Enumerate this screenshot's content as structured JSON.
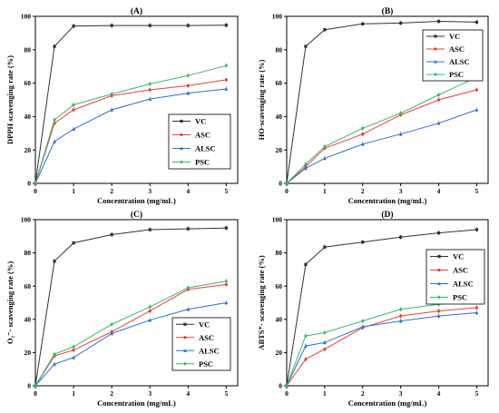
{
  "colors": {
    "VC": "#333333",
    "ASC": "#e8413a",
    "ALSC": "#2d6fd1",
    "PSC": "#3cb46a"
  },
  "chart_data": [
    {
      "type": "line",
      "title": "(A)",
      "xlabel": "Concentration (mg/mL)",
      "ylabel": "DPPH scavenging rate (%)",
      "x": [
        0,
        0.5,
        1,
        2,
        3,
        4,
        5
      ],
      "xticks": [
        "0",
        "1",
        "2",
        "3",
        "4",
        "5"
      ],
      "yticks": [
        "0",
        "20",
        "40",
        "60",
        "80",
        "100"
      ],
      "xlim": [
        0,
        5.3
      ],
      "ylim": [
        0,
        100
      ],
      "legend": "middle-right",
      "series": [
        {
          "name": "VC",
          "values": [
            0,
            82,
            94.2,
            94.5,
            94.5,
            94.5,
            94.7
          ]
        },
        {
          "name": "ASC",
          "values": [
            0,
            36,
            44,
            52.5,
            56,
            58.5,
            62
          ]
        },
        {
          "name": "ALSC",
          "values": [
            0,
            25,
            32.5,
            44,
            50.5,
            54,
            56.5
          ]
        },
        {
          "name": "PSC",
          "values": [
            0,
            38,
            47,
            53.5,
            59.5,
            64.5,
            70.5
          ]
        }
      ]
    },
    {
      "type": "line",
      "title": "(B)",
      "xlabel": "Concentration (mg/mL)",
      "ylabel": "HO·scavenging rate (%)",
      "x": [
        0,
        0.5,
        1,
        2,
        3,
        4,
        5
      ],
      "xticks": [
        "0",
        "1",
        "2",
        "3",
        "4",
        "5"
      ],
      "yticks": [
        "0",
        "20",
        "40",
        "60",
        "80",
        "100"
      ],
      "xlim": [
        0,
        5.3
      ],
      "ylim": [
        0,
        100
      ],
      "legend": "top-right",
      "series": [
        {
          "name": "VC",
          "values": [
            0,
            82,
            92,
            95.5,
            96,
            97,
            96.5
          ]
        },
        {
          "name": "ASC",
          "values": [
            0,
            10,
            21,
            29.5,
            41,
            50,
            56
          ]
        },
        {
          "name": "ALSC",
          "values": [
            0,
            9,
            15,
            23.5,
            29.5,
            36,
            44
          ]
        },
        {
          "name": "PSC",
          "values": [
            0,
            11.5,
            22,
            33,
            42,
            53,
            63.5
          ]
        }
      ]
    },
    {
      "type": "line",
      "title": "(C)",
      "xlabel": "Concentration (mg/mL)",
      "ylabel": "O₂⁻· scavenging rate (%)",
      "x": [
        0,
        0.5,
        1,
        2,
        3,
        4,
        5
      ],
      "xticks": [
        "0",
        "1",
        "2",
        "3",
        "4",
        "5"
      ],
      "yticks": [
        "0",
        "20",
        "40",
        "60",
        "80",
        "100"
      ],
      "xlim": [
        0,
        5.3
      ],
      "ylim": [
        0,
        100
      ],
      "legend": "bottom-right",
      "series": [
        {
          "name": "VC",
          "values": [
            0,
            75,
            86,
            91,
            94,
            94.5,
            95
          ]
        },
        {
          "name": "ASC",
          "values": [
            0,
            18,
            21.5,
            32.5,
            45,
            58,
            61
          ]
        },
        {
          "name": "ALSC",
          "values": [
            0,
            13,
            17,
            31.5,
            39.5,
            46,
            50
          ]
        },
        {
          "name": "PSC",
          "values": [
            0,
            19,
            23.5,
            37,
            47.5,
            59,
            63
          ]
        }
      ]
    },
    {
      "type": "line",
      "title": "(D)",
      "xlabel": "Concentration (mg/mL)",
      "ylabel": "ABTS⁺· scavenging rate (%)",
      "x": [
        0,
        0.5,
        1,
        2,
        3,
        4,
        5
      ],
      "xticks": [
        "0",
        "1",
        "2",
        "3",
        "4",
        "5"
      ],
      "yticks": [
        "0",
        "20",
        "40",
        "60",
        "80",
        "100"
      ],
      "xlim": [
        0,
        5.3
      ],
      "ylim": [
        0,
        100
      ],
      "legend": "middle-right",
      "series": [
        {
          "name": "VC",
          "values": [
            0,
            73,
            83.5,
            86.5,
            89.5,
            92,
            94
          ]
        },
        {
          "name": "ASC",
          "values": [
            0,
            16,
            22,
            35,
            42,
            45,
            47
          ]
        },
        {
          "name": "ALSC",
          "values": [
            0,
            24,
            26,
            35.5,
            39,
            42,
            44
          ]
        },
        {
          "name": "PSC",
          "values": [
            0,
            30,
            32,
            39,
            46,
            49,
            52
          ]
        }
      ]
    }
  ]
}
